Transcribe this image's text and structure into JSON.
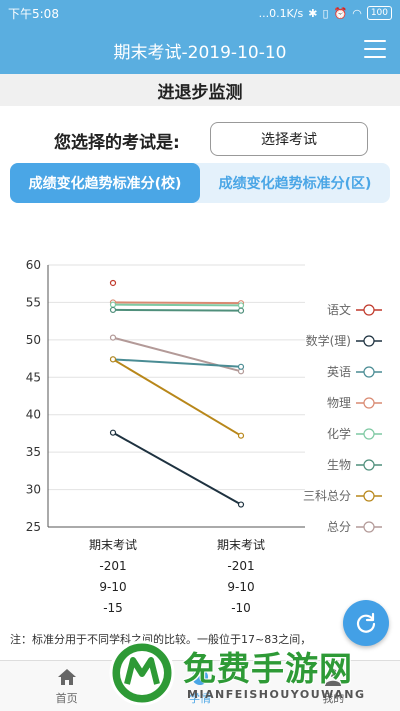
{
  "status_bar": {
    "time": "下午5:08",
    "network_speed": "...0.1K/s",
    "battery": "100"
  },
  "app_bar": {
    "title": "期末考试-2019-10-10",
    "menu_icon": "hamburger-menu-icon"
  },
  "section": {
    "title": "进退步监测"
  },
  "exam_select": {
    "label": "您选择的考试是:",
    "button": "选择考试"
  },
  "tabs": [
    {
      "label": "成绩变化趋势标准分(校)",
      "active": true
    },
    {
      "label": "成绩变化趋势标准分(区)",
      "active": false
    }
  ],
  "chart_data": {
    "type": "line",
    "categories": [
      [
        "期末考试",
        "-201",
        "9-10",
        "-15"
      ],
      [
        "期末考试",
        "-201",
        "9-10",
        "-10"
      ]
    ],
    "ylim": [
      25,
      60
    ],
    "yticks": [
      25,
      30,
      35,
      40,
      45,
      50,
      55,
      60
    ],
    "grid": true,
    "legend_position": "right",
    "series": [
      {
        "name": "语文",
        "color": "#c0392b",
        "values": [
          57.6,
          null
        ]
      },
      {
        "name": "物理",
        "color": "#d98a72",
        "values": [
          55.0,
          54.9
        ]
      },
      {
        "name": "化学",
        "color": "#7fc9a3",
        "values": [
          54.7,
          54.6
        ]
      },
      {
        "name": "生物",
        "color": "#4f8f7b",
        "values": [
          54.0,
          53.9
        ]
      },
      {
        "name": "总分",
        "color": "#b39a98",
        "values": [
          50.3,
          45.8
        ]
      },
      {
        "name": "英语",
        "color": "#4a8c94",
        "values": [
          47.4,
          46.4
        ]
      },
      {
        "name": "三科总分",
        "color": "#b8871a",
        "values": [
          47.4,
          37.2
        ]
      },
      {
        "name": "数学(理)",
        "color": "#1e3240",
        "values": [
          37.6,
          28.0
        ]
      }
    ],
    "legend_order": [
      "语文",
      "数学(理)",
      "英语",
      "物理",
      "化学",
      "生物",
      "三科总分",
      "总分"
    ]
  },
  "note": "注：标准分用于不同学科之间的比较。一般位于17~83之间，",
  "fab": {
    "icon": "refresh-icon"
  },
  "bottom_nav": [
    {
      "label": "首页",
      "icon": "home-icon",
      "active": false
    },
    {
      "label": "学情",
      "icon": "chart-icon",
      "active": true
    },
    {
      "label": "我的",
      "icon": "user-icon",
      "active": false
    }
  ],
  "watermark": {
    "text": "免费手游网",
    "sub": "MIANFEISHOUYOUWANG"
  }
}
